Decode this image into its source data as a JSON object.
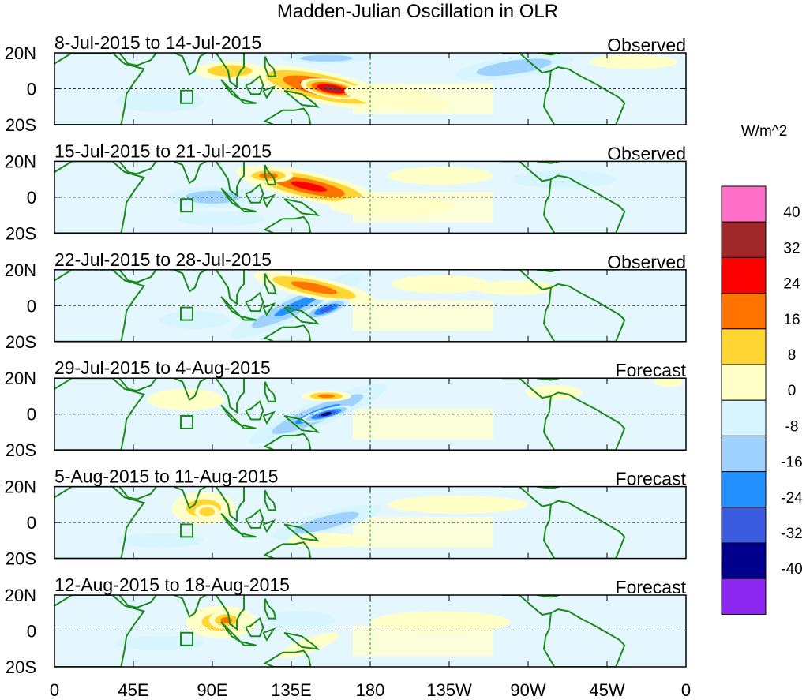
{
  "chart_data": {
    "type": "heatmap",
    "title": "Madden-Julian Oscillation in OLR",
    "variable": "OLR anomaly",
    "units": "W/m^2",
    "y_ticks": [
      "20N",
      "0",
      "20S"
    ],
    "x_ticks": [
      "0",
      "45E",
      "90E",
      "135E",
      "180",
      "135W",
      "90W",
      "45W",
      "0"
    ],
    "x_tick_lons": [
      0,
      45,
      90,
      135,
      180,
      225,
      270,
      315,
      360
    ],
    "xlim": [
      0,
      360
    ],
    "ylim": [
      -20,
      20
    ],
    "colorbar": {
      "levels": [
        "40",
        "32",
        "24",
        "16",
        "8",
        "0",
        "-8",
        "-16",
        "-24",
        "-32",
        "-40"
      ],
      "colors": [
        "#ff6ec7",
        "#a02828",
        "#ff0000",
        "#ff7300",
        "#ffd533",
        "#ffffc8",
        "#d7f5ff",
        "#a0d2ff",
        "#2391ff",
        "#3c5ce0",
        "#00008c",
        "#8c28f0"
      ]
    },
    "panels": [
      {
        "period": "8-Jul-2015 to 14-Jul-2015",
        "kind": "Observed",
        "anomalies": [
          {
            "lon": 152,
            "lat": 1,
            "rlon": 42,
            "rlat": 9,
            "rot": 12,
            "value": 30
          },
          {
            "lon": 158,
            "lat": 0,
            "rlon": 18,
            "rlat": 5,
            "rot": 10,
            "value": 42
          },
          {
            "lon": 100,
            "lat": 10,
            "rlon": 20,
            "rlat": 5,
            "rot": 0,
            "value": 18
          },
          {
            "lon": 195,
            "lat": -5,
            "rlon": 30,
            "rlat": 6,
            "rot": 8,
            "value": 8
          },
          {
            "lon": 262,
            "lat": 12,
            "rlon": 34,
            "rlat": 6,
            "rot": -8,
            "value": -18
          },
          {
            "lon": 155,
            "lat": 17,
            "rlon": 25,
            "rlat": 3,
            "rot": 0,
            "value": -16
          },
          {
            "lon": 60,
            "lat": -7,
            "rlon": 25,
            "rlat": 6,
            "rot": 0,
            "value": -6
          },
          {
            "lon": 330,
            "lat": 15,
            "rlon": 25,
            "rlat": 4,
            "rot": 0,
            "value": 6
          }
        ]
      },
      {
        "period": "15-Jul-2015 to 21-Jul-2015",
        "kind": "Observed",
        "anomalies": [
          {
            "lon": 145,
            "lat": 6,
            "rlon": 42,
            "rlat": 8,
            "rot": 12,
            "value": 28
          },
          {
            "lon": 122,
            "lat": 12,
            "rlon": 14,
            "rlat": 4,
            "rot": 0,
            "value": 22
          },
          {
            "lon": 90,
            "lat": 0,
            "rlon": 26,
            "rlat": 6,
            "rot": 0,
            "value": -16
          },
          {
            "lon": 192,
            "lat": -5,
            "rlon": 35,
            "rlat": 6,
            "rot": 0,
            "value": 8
          },
          {
            "lon": 95,
            "lat": -12,
            "rlon": 25,
            "rlat": 4,
            "rot": 0,
            "value": -8
          },
          {
            "lon": 290,
            "lat": 10,
            "rlon": 30,
            "rlat": 5,
            "rot": 0,
            "value": -8
          },
          {
            "lon": 220,
            "lat": 12,
            "rlon": 30,
            "rlat": 5,
            "rot": 0,
            "value": 6
          }
        ]
      },
      {
        "period": "22-Jul-2015 to 28-Jul-2015",
        "kind": "Observed",
        "anomalies": [
          {
            "lon": 138,
            "lat": 0,
            "rlon": 42,
            "rlat": 7,
            "rot": -25,
            "value": -20
          },
          {
            "lon": 148,
            "lat": 10,
            "rlon": 35,
            "rlat": 6,
            "rot": 12,
            "value": 22
          },
          {
            "lon": 155,
            "lat": -2,
            "rlon": 14,
            "rlat": 4,
            "rot": -20,
            "value": -30
          },
          {
            "lon": 80,
            "lat": -8,
            "rlon": 20,
            "rlat": 5,
            "rot": 0,
            "value": -6
          },
          {
            "lon": 220,
            "lat": 12,
            "rlon": 28,
            "rlat": 5,
            "rot": 0,
            "value": 8
          },
          {
            "lon": 262,
            "lat": 10,
            "rlon": 24,
            "rlat": 4,
            "rot": 0,
            "value": 8
          }
        ]
      },
      {
        "period": "29-Jul-2015 to 4-Aug-2015",
        "kind": "Forecast",
        "anomalies": [
          {
            "lon": 150,
            "lat": 0,
            "rlon": 42,
            "rlat": 7,
            "rot": -22,
            "value": -20
          },
          {
            "lon": 155,
            "lat": 0,
            "rlon": 15,
            "rlat": 3,
            "rot": -15,
            "value": -36
          },
          {
            "lon": 75,
            "lat": 8,
            "rlon": 22,
            "rlat": 6,
            "rot": 0,
            "value": 10
          },
          {
            "lon": 155,
            "lat": 10,
            "rlon": 14,
            "rlat": 3,
            "rot": 0,
            "value": 20
          },
          {
            "lon": 285,
            "lat": 12,
            "rlon": 16,
            "rlat": 4,
            "rot": 0,
            "value": 8
          },
          {
            "lon": 350,
            "lat": 18,
            "rlon": 8,
            "rlat": 3,
            "rot": 0,
            "value": 8
          }
        ]
      },
      {
        "period": "5-Aug-2015 to 11-Aug-2015",
        "kind": "Forecast",
        "anomalies": [
          {
            "lon": 85,
            "lat": 8,
            "rlon": 18,
            "rlat": 9,
            "rot": 0,
            "value": 14
          },
          {
            "lon": 87,
            "lat": 6,
            "rlon": 7,
            "rlat": 4,
            "rot": 0,
            "value": 18
          },
          {
            "lon": 155,
            "lat": 0,
            "rlon": 32,
            "rlat": 6,
            "rot": -15,
            "value": -16
          },
          {
            "lon": 155,
            "lat": -10,
            "rlon": 22,
            "rlat": 4,
            "rot": 0,
            "value": 8
          },
          {
            "lon": 60,
            "lat": -10,
            "rlon": 25,
            "rlat": 4,
            "rot": 0,
            "value": -8
          },
          {
            "lon": 230,
            "lat": 10,
            "rlon": 40,
            "rlat": 5,
            "rot": 0,
            "value": 4
          }
        ]
      },
      {
        "period": "12-Aug-2015 to 18-Aug-2015",
        "kind": "Forecast",
        "anomalies": [
          {
            "lon": 95,
            "lat": 5,
            "rlon": 20,
            "rlat": 9,
            "rot": 0,
            "value": 14
          },
          {
            "lon": 98,
            "lat": 6,
            "rlon": 10,
            "rlat": 5,
            "rot": 0,
            "value": 20
          },
          {
            "lon": 145,
            "lat": -8,
            "rlon": 18,
            "rlat": 4,
            "rot": -20,
            "value": 10
          },
          {
            "lon": 140,
            "lat": 6,
            "rlon": 20,
            "rlat": 5,
            "rot": 0,
            "value": -8
          },
          {
            "lon": 60,
            "lat": -7,
            "rlon": 25,
            "rlat": 4,
            "rot": 0,
            "value": -8
          },
          {
            "lon": 220,
            "lat": 5,
            "rlon": 40,
            "rlat": 6,
            "rot": 0,
            "value": 4
          }
        ]
      }
    ]
  }
}
